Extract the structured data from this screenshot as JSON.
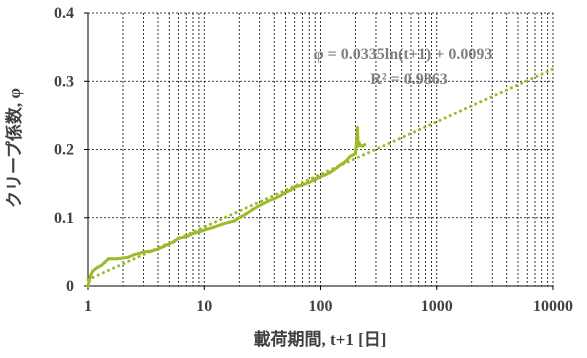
{
  "chart_data": {
    "type": "scatter",
    "title": "",
    "xlabel": "載荷期間, t+1 [日]",
    "ylabel": "クリープ係数, φ",
    "x_scale": "log",
    "xlim": [
      1,
      10000
    ],
    "ylim": [
      0,
      0.4
    ],
    "x_ticks": [
      1,
      10,
      100,
      1000,
      10000
    ],
    "x_tick_labels": [
      "1",
      "10",
      "100",
      "1000",
      "10000"
    ],
    "y_ticks": [
      0,
      0.1,
      0.2,
      0.3,
      0.4
    ],
    "y_tick_labels": [
      "0",
      "0.1",
      "0.2",
      "0.3",
      "0.4"
    ],
    "grid": "dashed, major and minor on x; major on y",
    "annotations": {
      "equation": "φ = 0.0335ln(t+1) + 0.0093",
      "r2": "R² = 0.9863"
    },
    "series": [
      {
        "type": "line",
        "color": "#9bbb2b",
        "x": [
          1,
          1.05,
          1.1,
          1.2,
          1.3,
          1.4,
          1.5,
          1.6,
          1.8,
          2,
          2.2,
          2.5,
          2.8,
          3,
          3.5,
          4,
          4.5,
          5,
          5.5,
          6,
          7,
          8,
          9,
          10,
          12,
          14,
          16,
          18,
          20,
          23,
          26,
          30,
          35,
          40,
          45,
          50,
          55,
          60,
          70,
          80,
          90,
          100,
          110,
          120,
          130,
          140,
          150,
          160,
          170,
          180,
          190,
          200,
          205,
          208,
          210,
          215,
          220,
          230,
          240
        ],
        "y": [
          0,
          0.015,
          0.022,
          0.027,
          0.03,
          0.035,
          0.04,
          0.04,
          0.04,
          0.041,
          0.042,
          0.046,
          0.048,
          0.05,
          0.051,
          0.054,
          0.058,
          0.062,
          0.065,
          0.07,
          0.072,
          0.077,
          0.079,
          0.082,
          0.086,
          0.09,
          0.093,
          0.095,
          0.1,
          0.106,
          0.112,
          0.118,
          0.124,
          0.128,
          0.132,
          0.137,
          0.14,
          0.145,
          0.148,
          0.152,
          0.156,
          0.16,
          0.163,
          0.166,
          0.17,
          0.174,
          0.178,
          0.181,
          0.185,
          0.19,
          0.192,
          0.194,
          0.215,
          0.232,
          0.205,
          0.21,
          0.206,
          0.205,
          0.207
        ]
      },
      {
        "type": "trendline",
        "color": "#9bbb2b",
        "style": "dotted",
        "equation": {
          "a": 0.0335,
          "b": 0.0093,
          "form": "a*ln(x)+b"
        },
        "x": [
          1,
          2,
          5,
          10,
          20,
          50,
          100,
          200,
          500,
          1000,
          2000,
          5000,
          10000
        ],
        "y": [
          0.0093,
          0.0325,
          0.0632,
          0.0864,
          0.1097,
          0.1404,
          0.1636,
          0.1868,
          0.2175,
          0.2407,
          0.264,
          0.2946,
          0.3179
        ]
      }
    ]
  }
}
